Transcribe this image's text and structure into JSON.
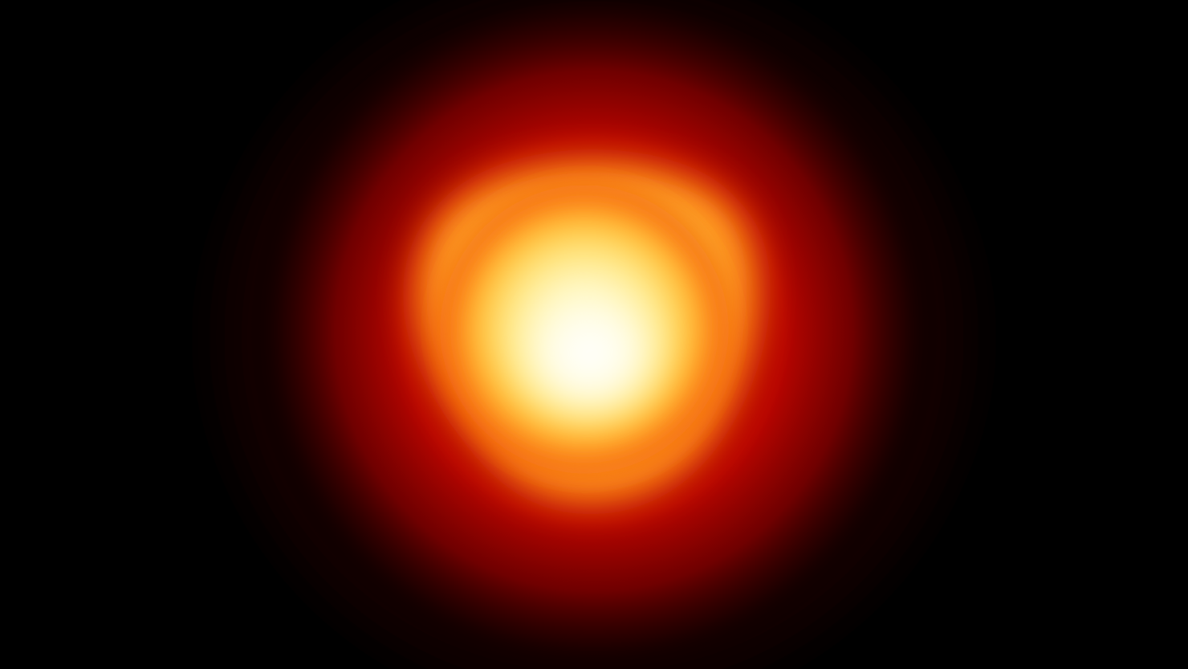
{
  "image": {
    "subject": "star-glow",
    "background_color": "#000000",
    "palette": {
      "core": "#FFFFF4",
      "inner": "#FFF3A0",
      "yellow": "#FFD24A",
      "orange": "#FF9A1A",
      "red_orange": "#F04A08",
      "red": "#D00A02",
      "deep_red": "#8A0000",
      "dark_red": "#3A0000",
      "black": "#000000"
    }
  }
}
